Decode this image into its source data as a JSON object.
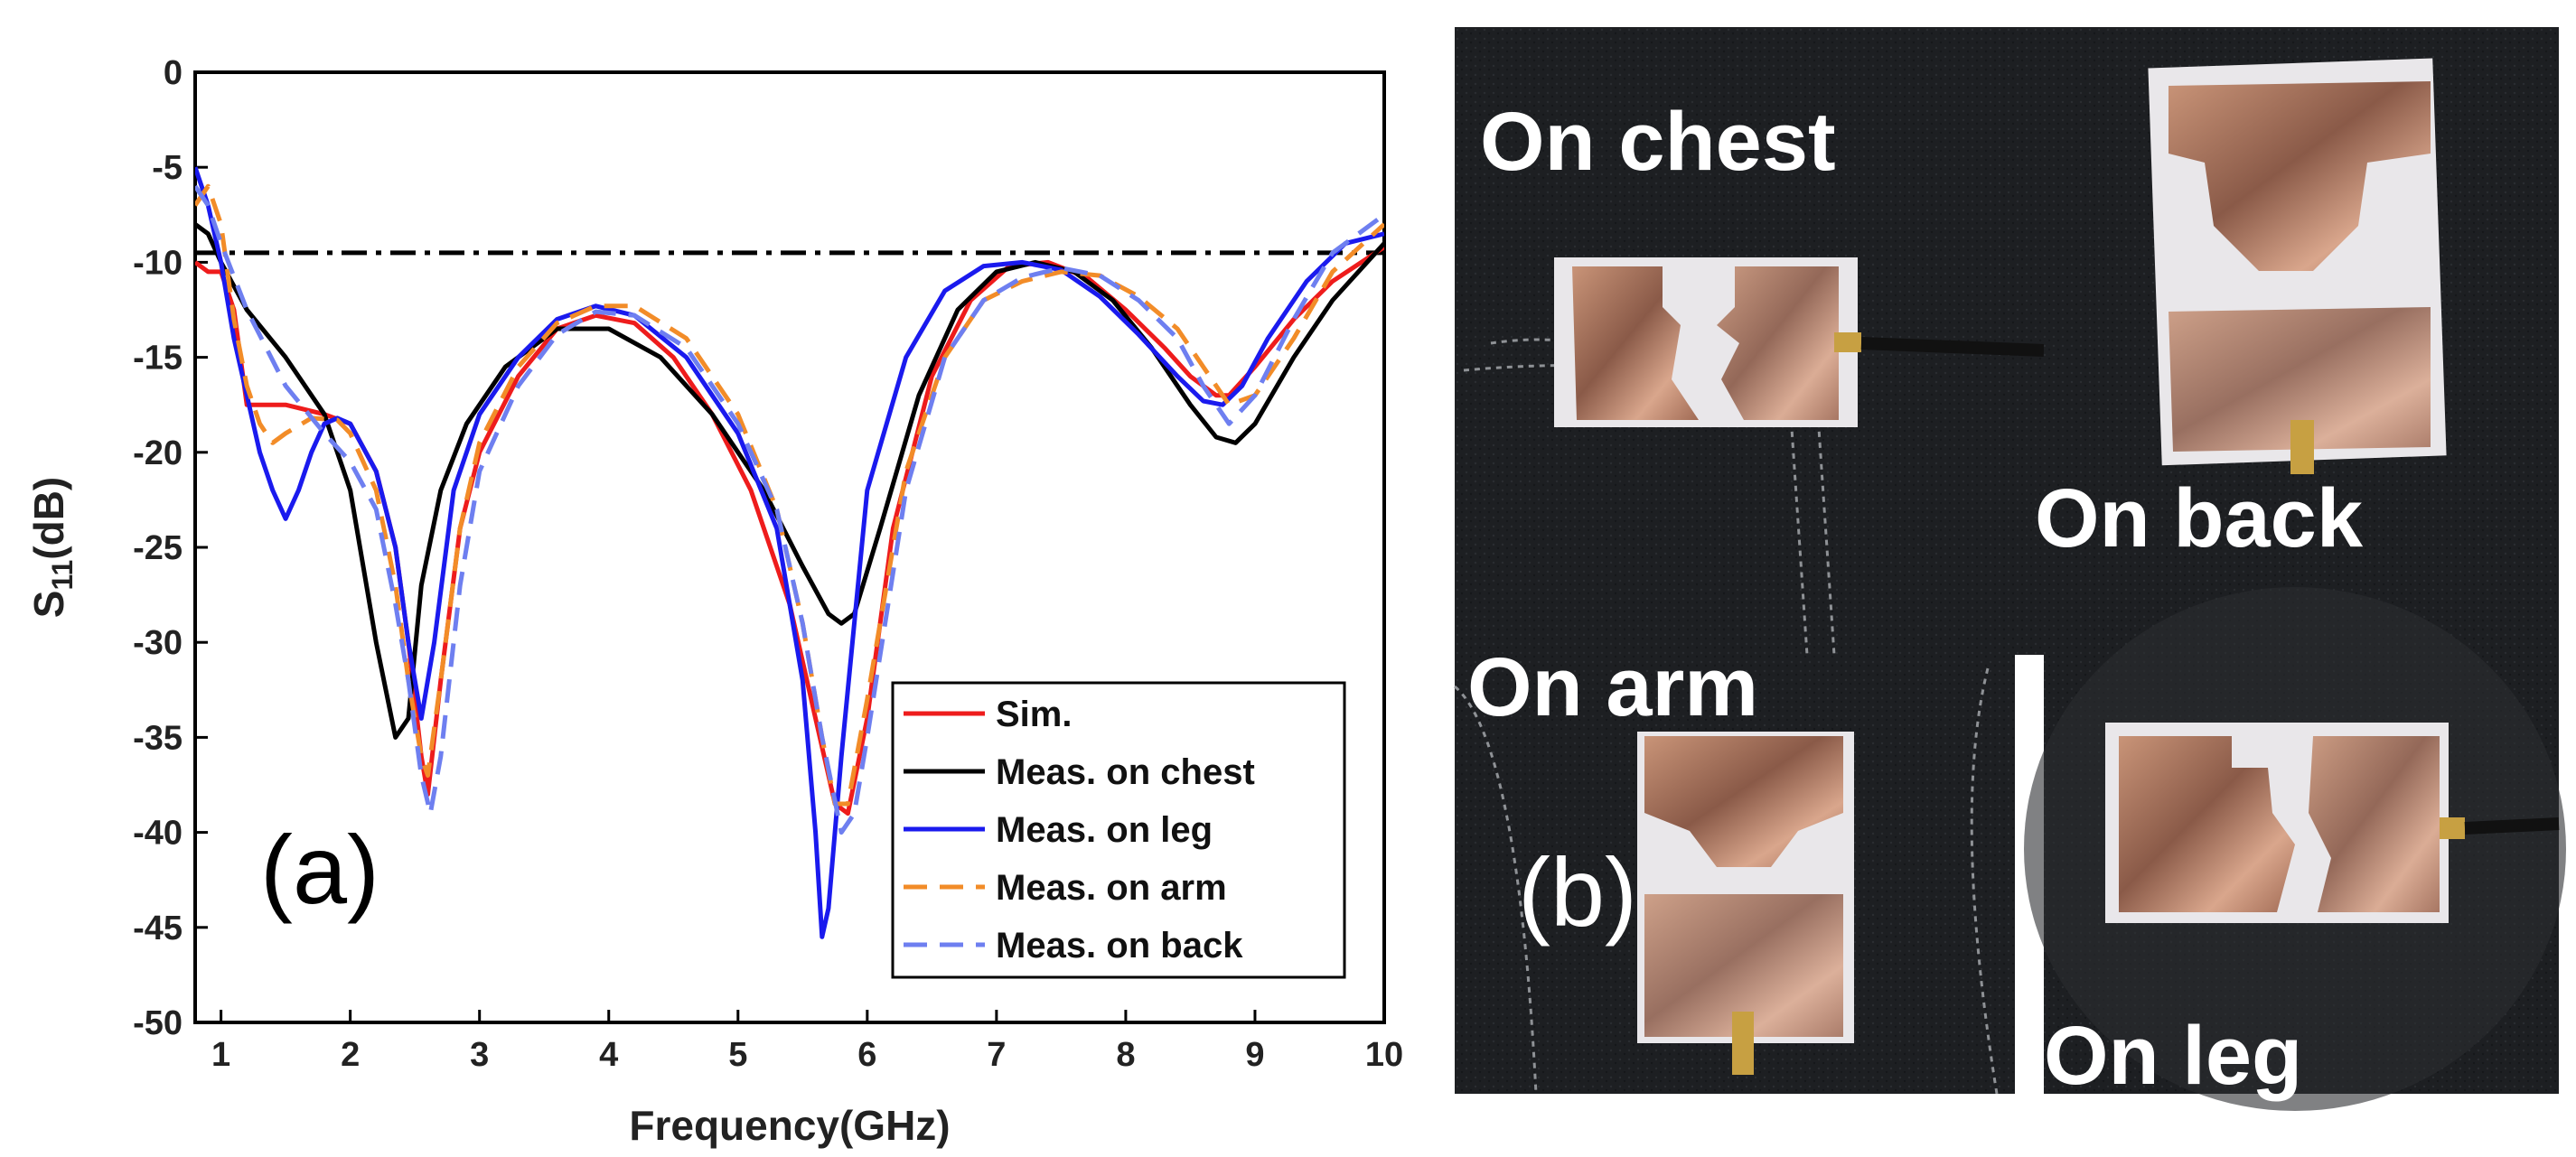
{
  "panel_a_label": "(a)",
  "panel_b_label": "(b)",
  "photo_labels": {
    "chest": "On chest",
    "back": "On back",
    "arm": "On arm",
    "leg": "On leg"
  },
  "colors": {
    "sim": "#ee1c1c",
    "chest": "#000000",
    "leg": "#1a1aee",
    "arm": "#f28c28",
    "back": "#6e7ff0",
    "threshold": "#000000"
  },
  "chart_data": {
    "type": "line",
    "title": "",
    "xlabel": "Frequency(GHz)",
    "ylabel_main": "S",
    "ylabel_sub": "11",
    "ylabel_rest": "(dB)",
    "xlim": [
      0.8,
      10
    ],
    "ylim": [
      -50,
      0
    ],
    "xticks": [
      "1",
      "2",
      "3",
      "4",
      "5",
      "6",
      "7",
      "8",
      "9",
      "10"
    ],
    "yticks": [
      "0",
      "-5",
      "-10",
      "-15",
      "-20",
      "-25",
      "-30",
      "-35",
      "-40",
      "-45",
      "-50"
    ],
    "threshold": -9.5,
    "legend_position": "bottom-right",
    "series": [
      {
        "name": "Sim.",
        "style": "solid",
        "x": [
          0.8,
          0.9,
          1.0,
          1.1,
          1.2,
          1.5,
          1.8,
          2.0,
          2.2,
          2.35,
          2.45,
          2.55,
          2.6,
          2.7,
          2.85,
          3.0,
          3.3,
          3.6,
          3.9,
          4.2,
          4.5,
          4.8,
          5.1,
          5.4,
          5.6,
          5.75,
          5.85,
          6.0,
          6.2,
          6.5,
          6.8,
          7.1,
          7.4,
          7.7,
          8.0,
          8.3,
          8.5,
          8.7,
          8.8,
          9.0,
          9.3,
          9.6,
          10.0
        ],
        "y": [
          -10,
          -10.5,
          -10.5,
          -12.5,
          -17.5,
          -17.5,
          -18,
          -18.5,
          -21,
          -25,
          -30,
          -36,
          -38,
          -32,
          -24,
          -20,
          -16,
          -13.5,
          -12.8,
          -13.2,
          -15,
          -18,
          -22,
          -28,
          -34,
          -38.5,
          -39,
          -34,
          -24,
          -16,
          -12,
          -10.2,
          -10,
          -10.8,
          -12.5,
          -14.5,
          -16,
          -17,
          -17,
          -15.5,
          -13,
          -11,
          -9.2
        ]
      },
      {
        "name": "Meas. on chest",
        "style": "solid",
        "x": [
          0.8,
          0.9,
          1.0,
          1.2,
          1.5,
          1.8,
          2.0,
          2.2,
          2.35,
          2.45,
          2.55,
          2.7,
          2.9,
          3.2,
          3.6,
          4.0,
          4.4,
          4.8,
          5.2,
          5.5,
          5.7,
          5.8,
          5.9,
          6.1,
          6.4,
          6.7,
          7.0,
          7.3,
          7.6,
          7.9,
          8.2,
          8.5,
          8.7,
          8.85,
          9.0,
          9.3,
          9.6,
          10.0
        ],
        "y": [
          -8,
          -8.5,
          -10,
          -12.5,
          -15,
          -18,
          -22,
          -30,
          -35,
          -34,
          -27,
          -22,
          -18.5,
          -15.5,
          -13.5,
          -13.5,
          -15,
          -18,
          -22,
          -26,
          -28.5,
          -29,
          -28.5,
          -24,
          -17,
          -12.5,
          -10.5,
          -10,
          -10.5,
          -12,
          -14.5,
          -17.5,
          -19.2,
          -19.5,
          -18.5,
          -15,
          -12,
          -9
        ]
      },
      {
        "name": "Meas. on leg",
        "style": "solid",
        "x": [
          0.8,
          0.9,
          1.0,
          1.1,
          1.2,
          1.3,
          1.4,
          1.5,
          1.6,
          1.7,
          1.8,
          1.9,
          2.0,
          2.2,
          2.35,
          2.45,
          2.55,
          2.65,
          2.8,
          3.0,
          3.3,
          3.6,
          3.9,
          4.2,
          4.6,
          5.0,
          5.3,
          5.5,
          5.6,
          5.65,
          5.7,
          5.8,
          6.0,
          6.3,
          6.6,
          6.9,
          7.2,
          7.5,
          7.8,
          8.1,
          8.4,
          8.6,
          8.75,
          8.9,
          9.1,
          9.4,
          9.7,
          10.0
        ],
        "y": [
          -5,
          -7,
          -10,
          -14,
          -17,
          -20,
          -22,
          -23.5,
          -22,
          -20,
          -18.5,
          -18.2,
          -18.5,
          -21,
          -25,
          -30,
          -34,
          -30,
          -22,
          -18,
          -15,
          -13,
          -12.3,
          -12.8,
          -15,
          -19,
          -24,
          -32,
          -40,
          -45.5,
          -44,
          -36,
          -22,
          -15,
          -11.5,
          -10.2,
          -10,
          -10.4,
          -11.8,
          -13.8,
          -16,
          -17.3,
          -17.5,
          -16.5,
          -14,
          -11,
          -9,
          -8.5
        ]
      },
      {
        "name": "Meas. on arm",
        "style": "dash",
        "x": [
          0.8,
          0.9,
          1.0,
          1.1,
          1.2,
          1.3,
          1.4,
          1.5,
          1.7,
          1.9,
          2.0,
          2.2,
          2.35,
          2.45,
          2.55,
          2.6,
          2.7,
          2.85,
          3.0,
          3.3,
          3.6,
          3.9,
          4.2,
          4.6,
          5.0,
          5.3,
          5.5,
          5.65,
          5.75,
          5.85,
          6.0,
          6.3,
          6.6,
          6.9,
          7.2,
          7.5,
          7.8,
          8.1,
          8.4,
          8.6,
          8.8,
          9.0,
          9.3,
          9.6,
          10.0
        ],
        "y": [
          -7,
          -6,
          -8,
          -13,
          -16.5,
          -18.5,
          -19.5,
          -19,
          -18.2,
          -18.3,
          -19,
          -22,
          -27,
          -32,
          -36,
          -37,
          -32,
          -24,
          -19.5,
          -15.5,
          -13.2,
          -12.3,
          -12.3,
          -14,
          -18,
          -23,
          -29,
          -35,
          -38.5,
          -38.5,
          -33,
          -21,
          -15,
          -12,
          -11,
          -10.5,
          -10.7,
          -11.8,
          -13.5,
          -15.5,
          -17.5,
          -17,
          -14,
          -10.5,
          -8
        ]
      },
      {
        "name": "Meas. on back",
        "style": "dash",
        "x": [
          0.8,
          0.9,
          1.0,
          1.2,
          1.5,
          1.8,
          2.0,
          2.2,
          2.35,
          2.45,
          2.55,
          2.62,
          2.7,
          2.85,
          3.0,
          3.3,
          3.6,
          3.9,
          4.2,
          4.6,
          5.0,
          5.3,
          5.5,
          5.65,
          5.8,
          5.9,
          6.0,
          6.3,
          6.6,
          6.9,
          7.2,
          7.5,
          7.8,
          8.1,
          8.4,
          8.6,
          8.8,
          9.0,
          9.3,
          9.6,
          10.0
        ],
        "y": [
          -6,
          -7,
          -9,
          -12.5,
          -16.5,
          -19,
          -20.5,
          -23,
          -28,
          -32,
          -37,
          -39,
          -36,
          -27,
          -21,
          -16.5,
          -13.8,
          -12.6,
          -12.8,
          -14.5,
          -18.5,
          -23,
          -29,
          -35,
          -40,
          -39,
          -35,
          -22,
          -15,
          -12,
          -10.8,
          -10.3,
          -10.7,
          -12,
          -14,
          -16.5,
          -18.5,
          -17,
          -13,
          -9.5,
          -7.5
        ]
      }
    ]
  }
}
